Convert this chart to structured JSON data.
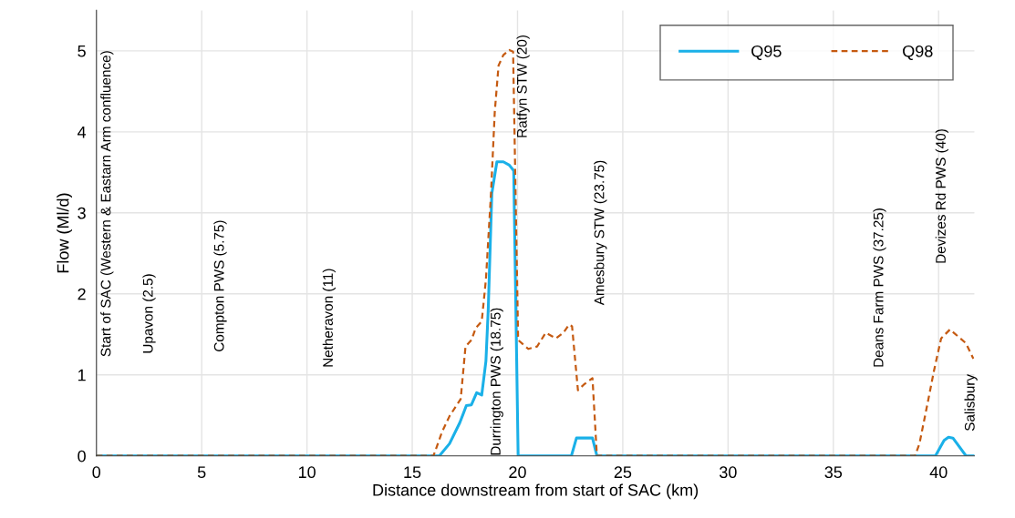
{
  "chart_data": {
    "type": "line",
    "xlabel": "Distance downstream from start of SAC (km)",
    "ylabel": "Flow (Ml/d)",
    "xlim": [
      0,
      41.7
    ],
    "ylim": [
      0,
      5.5
    ],
    "xticks": [
      0,
      5,
      10,
      15,
      20,
      25,
      30,
      35,
      40
    ],
    "yticks": [
      0,
      1,
      2,
      3,
      4,
      5
    ],
    "grid": true,
    "legend": "top right",
    "series": [
      {
        "name": "Q95",
        "color": "#1ab0e8",
        "line_style": "solid",
        "x": [
          0,
          16.29,
          16.77,
          17.26,
          17.57,
          17.81,
          18.06,
          18.3,
          18.5,
          18.61,
          18.78,
          19.02,
          19.33,
          19.61,
          19.82,
          20.03,
          22.56,
          22.8,
          23.56,
          23.77,
          39.85,
          40.26,
          40.47,
          40.68,
          41.3,
          41.7
        ],
        "values": [
          0,
          0,
          0.15,
          0.41,
          0.62,
          0.63,
          0.78,
          0.75,
          1.17,
          1.81,
          3.24,
          3.63,
          3.63,
          3.59,
          3.52,
          0,
          0,
          0.22,
          0.22,
          0,
          0,
          0.19,
          0.23,
          0.22,
          0,
          0
        ]
      },
      {
        "name": "Q98",
        "color": "#c55a11",
        "line_style": "dashed",
        "x": [
          0,
          16.01,
          16.42,
          16.77,
          17.3,
          17.53,
          17.81,
          18.02,
          18.3,
          18.5,
          18.74,
          18.92,
          19.1,
          19.33,
          19.61,
          19.79,
          20.03,
          20.51,
          20.93,
          21.34,
          21.83,
          22.18,
          22.45,
          22.59,
          22.87,
          23.15,
          23.56,
          23.77,
          38.88,
          39.09,
          39.5,
          39.78,
          40.12,
          40.54,
          41.3,
          41.65
        ],
        "values": [
          0,
          0,
          0.3,
          0.49,
          0.7,
          1.35,
          1.43,
          1.58,
          1.66,
          2.18,
          3.24,
          4.25,
          4.82,
          4.95,
          5.01,
          4.99,
          1.43,
          1.32,
          1.35,
          1.52,
          1.45,
          1.52,
          1.62,
          1.6,
          0.81,
          0.88,
          0.96,
          0,
          0,
          0.15,
          0.68,
          1.05,
          1.45,
          1.56,
          1.39,
          1.2
        ]
      }
    ],
    "annotations": [
      "Start of SAC (Western & Eastarn Arm confluence)",
      "Upavon (2.5)",
      "Compton PWS (5.75)",
      "Netheravon (11)",
      "Durrington PWS (18.75)",
      "Ratfyn STW (20)",
      "Amesbury STW (23.75)",
      "Deans Farm PWS (37.25)",
      "Devizes Rd PWS (40)",
      "Salisbury"
    ]
  }
}
